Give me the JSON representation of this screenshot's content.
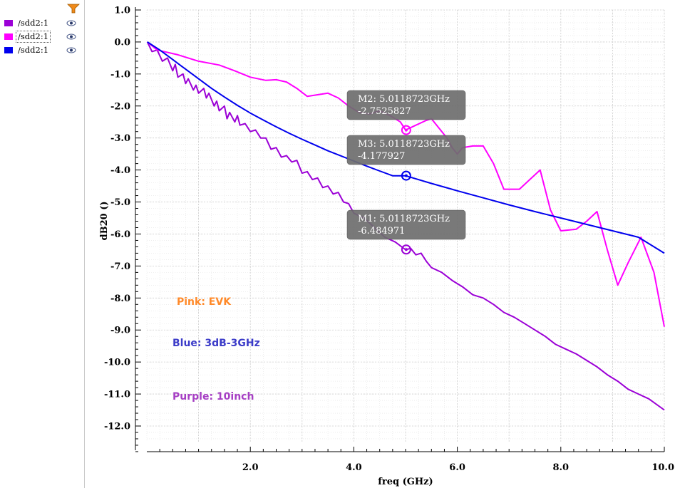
{
  "legend": {
    "items": [
      {
        "label": "/sdd2:1",
        "color": "#9b00d6",
        "selected": false
      },
      {
        "label": "/sdd2:1",
        "color": "#ff00ff",
        "selected": true
      },
      {
        "label": "/sdd2:1",
        "color": "#0000ee",
        "selected": false
      }
    ],
    "filter_icon": "filter-funnel-icon",
    "visibility_icon": "eye-icon"
  },
  "chart_data": {
    "type": "line",
    "xlabel": "freq (GHz)",
    "ylabel": "dB20 ()",
    "xlim": [
      0,
      10
    ],
    "ylim": [
      -12.8,
      1.2
    ],
    "x_ticks": [
      2,
      4,
      6,
      8,
      10
    ],
    "x_tick_labels": [
      "2.0",
      "4.0",
      "6.0",
      "8.0",
      "10.0"
    ],
    "y_ticks": [
      1,
      0,
      -1,
      -2,
      -3,
      -4,
      -5,
      -6,
      -7,
      -8,
      -9,
      -10,
      -11,
      -12
    ],
    "y_tick_labels": [
      "1.0",
      "0.0",
      "-1.0",
      "-2.0",
      "-3.0",
      "-4.0",
      "-5.0",
      "-6.0",
      "-7.0",
      "-8.0",
      "-9.0",
      "-10.0",
      "-11.0",
      "-12.0"
    ],
    "grid": true,
    "series": [
      {
        "color": "#9b00d6",
        "x": [
          0.01,
          0.1,
          0.2,
          0.3,
          0.4,
          0.5,
          0.55,
          0.6,
          0.7,
          0.75,
          0.8,
          0.9,
          0.95,
          1.0,
          1.1,
          1.15,
          1.2,
          1.3,
          1.35,
          1.4,
          1.5,
          1.55,
          1.6,
          1.7,
          1.75,
          1.8,
          1.9,
          2.0,
          2.1,
          2.2,
          2.3,
          2.4,
          2.5,
          2.6,
          2.7,
          2.8,
          2.9,
          3.0,
          3.1,
          3.2,
          3.3,
          3.4,
          3.5,
          3.6,
          3.7,
          3.8,
          3.9,
          4.0,
          4.2,
          4.4,
          4.6,
          4.8,
          5.0,
          5.1,
          5.2,
          5.3,
          5.4,
          5.5,
          5.7,
          5.9,
          6.1,
          6.3,
          6.5,
          6.7,
          6.9,
          7.1,
          7.3,
          7.5,
          7.7,
          7.9,
          8.1,
          8.3,
          8.5,
          8.7,
          8.9,
          9.1,
          9.3,
          9.5,
          9.7,
          10.0
        ],
        "y": [
          0.0,
          -0.3,
          -0.25,
          -0.6,
          -0.5,
          -0.9,
          -0.7,
          -1.1,
          -1.0,
          -1.3,
          -1.15,
          -1.5,
          -1.35,
          -1.6,
          -1.45,
          -1.75,
          -1.6,
          -2.0,
          -1.85,
          -2.15,
          -2.0,
          -2.4,
          -2.2,
          -2.5,
          -2.3,
          -2.6,
          -2.55,
          -2.8,
          -2.75,
          -3.0,
          -3.0,
          -3.35,
          -3.3,
          -3.6,
          -3.55,
          -3.75,
          -3.7,
          -4.1,
          -4.05,
          -4.3,
          -4.25,
          -4.55,
          -4.5,
          -4.75,
          -4.7,
          -5.0,
          -5.05,
          -5.35,
          -5.5,
          -5.8,
          -6.1,
          -6.25,
          -6.49,
          -6.45,
          -6.65,
          -6.6,
          -6.85,
          -7.05,
          -7.2,
          -7.45,
          -7.65,
          -7.9,
          -8.0,
          -8.2,
          -8.45,
          -8.6,
          -8.8,
          -9.0,
          -9.2,
          -9.45,
          -9.6,
          -9.75,
          -9.95,
          -10.15,
          -10.4,
          -10.6,
          -10.85,
          -11.0,
          -11.15,
          -11.5
        ]
      },
      {
        "color": "#ff00ff",
        "x": [
          0.01,
          0.2,
          0.6,
          1.0,
          1.4,
          1.7,
          2.0,
          2.3,
          2.5,
          2.7,
          2.9,
          3.1,
          3.3,
          3.5,
          3.7,
          3.9,
          4.1,
          4.3,
          4.5,
          4.7,
          4.9,
          5.0,
          5.2,
          5.4,
          5.5,
          5.6,
          5.8,
          5.9,
          6.0,
          6.1,
          6.3,
          6.5,
          6.7,
          6.9,
          7.0,
          7.2,
          7.4,
          7.6,
          7.8,
          8.0,
          8.3,
          8.5,
          8.7,
          8.9,
          9.1,
          9.3,
          9.55,
          9.8,
          10.0
        ],
        "y": [
          0.0,
          -0.25,
          -0.4,
          -0.6,
          -0.72,
          -0.9,
          -1.1,
          -1.2,
          -1.18,
          -1.25,
          -1.45,
          -1.7,
          -1.65,
          -1.6,
          -1.75,
          -2.0,
          -2.2,
          -2.25,
          -2.15,
          -2.3,
          -2.5,
          -2.75,
          -2.6,
          -2.45,
          -2.4,
          -2.6,
          -3.0,
          -3.3,
          -3.5,
          -3.3,
          -3.25,
          -3.25,
          -3.8,
          -4.6,
          -4.6,
          -4.6,
          -4.3,
          -4.0,
          -5.25,
          -5.9,
          -5.85,
          -5.6,
          -5.3,
          -6.5,
          -7.6,
          -6.9,
          -6.1,
          -7.2,
          -8.9
        ]
      },
      {
        "color": "#0000ee",
        "x": [
          0.01,
          0.25,
          0.5,
          0.75,
          1.0,
          1.25,
          1.5,
          1.75,
          2.0,
          2.25,
          2.5,
          2.75,
          3.0,
          3.25,
          3.5,
          3.75,
          4.0,
          4.25,
          4.5,
          4.75,
          5.0,
          5.5,
          6.0,
          6.5,
          7.0,
          7.5,
          8.0,
          8.5,
          9.0,
          9.5,
          10.0
        ],
        "y": [
          0.0,
          -0.25,
          -0.55,
          -0.85,
          -1.15,
          -1.45,
          -1.72,
          -1.98,
          -2.22,
          -2.44,
          -2.65,
          -2.85,
          -3.04,
          -3.22,
          -3.4,
          -3.56,
          -3.72,
          -3.88,
          -4.03,
          -4.18,
          -4.18,
          -4.42,
          -4.65,
          -4.87,
          -5.09,
          -5.3,
          -5.5,
          -5.7,
          -5.9,
          -6.1,
          -6.6
        ]
      }
    ],
    "markers": [
      {
        "name": "M2",
        "label": "M2: 5.0118723GHz",
        "value_text": "-2.7525827",
        "x": 5.0118723,
        "y": -2.7525827,
        "color": "#ff00ff"
      },
      {
        "name": "M3",
        "label": "M3: 5.0118723GHz",
        "value_text": "-4.177927",
        "x": 5.0118723,
        "y": -4.177927,
        "color": "#0000ee"
      },
      {
        "name": "M1",
        "label": "M1: 5.0118723GHz",
        "value_text": "-6.484971",
        "x": 5.0118723,
        "y": -6.484971,
        "color": "#9b00d6"
      }
    ],
    "annotations": [
      {
        "text": "Pink:  EVK",
        "color": "#ff8a2a"
      },
      {
        "text": "Blue:  3dB-3GHz",
        "color": "#3b3bc8"
      },
      {
        "text": "Purple: 10inch",
        "color": "#a63fc4"
      }
    ]
  }
}
